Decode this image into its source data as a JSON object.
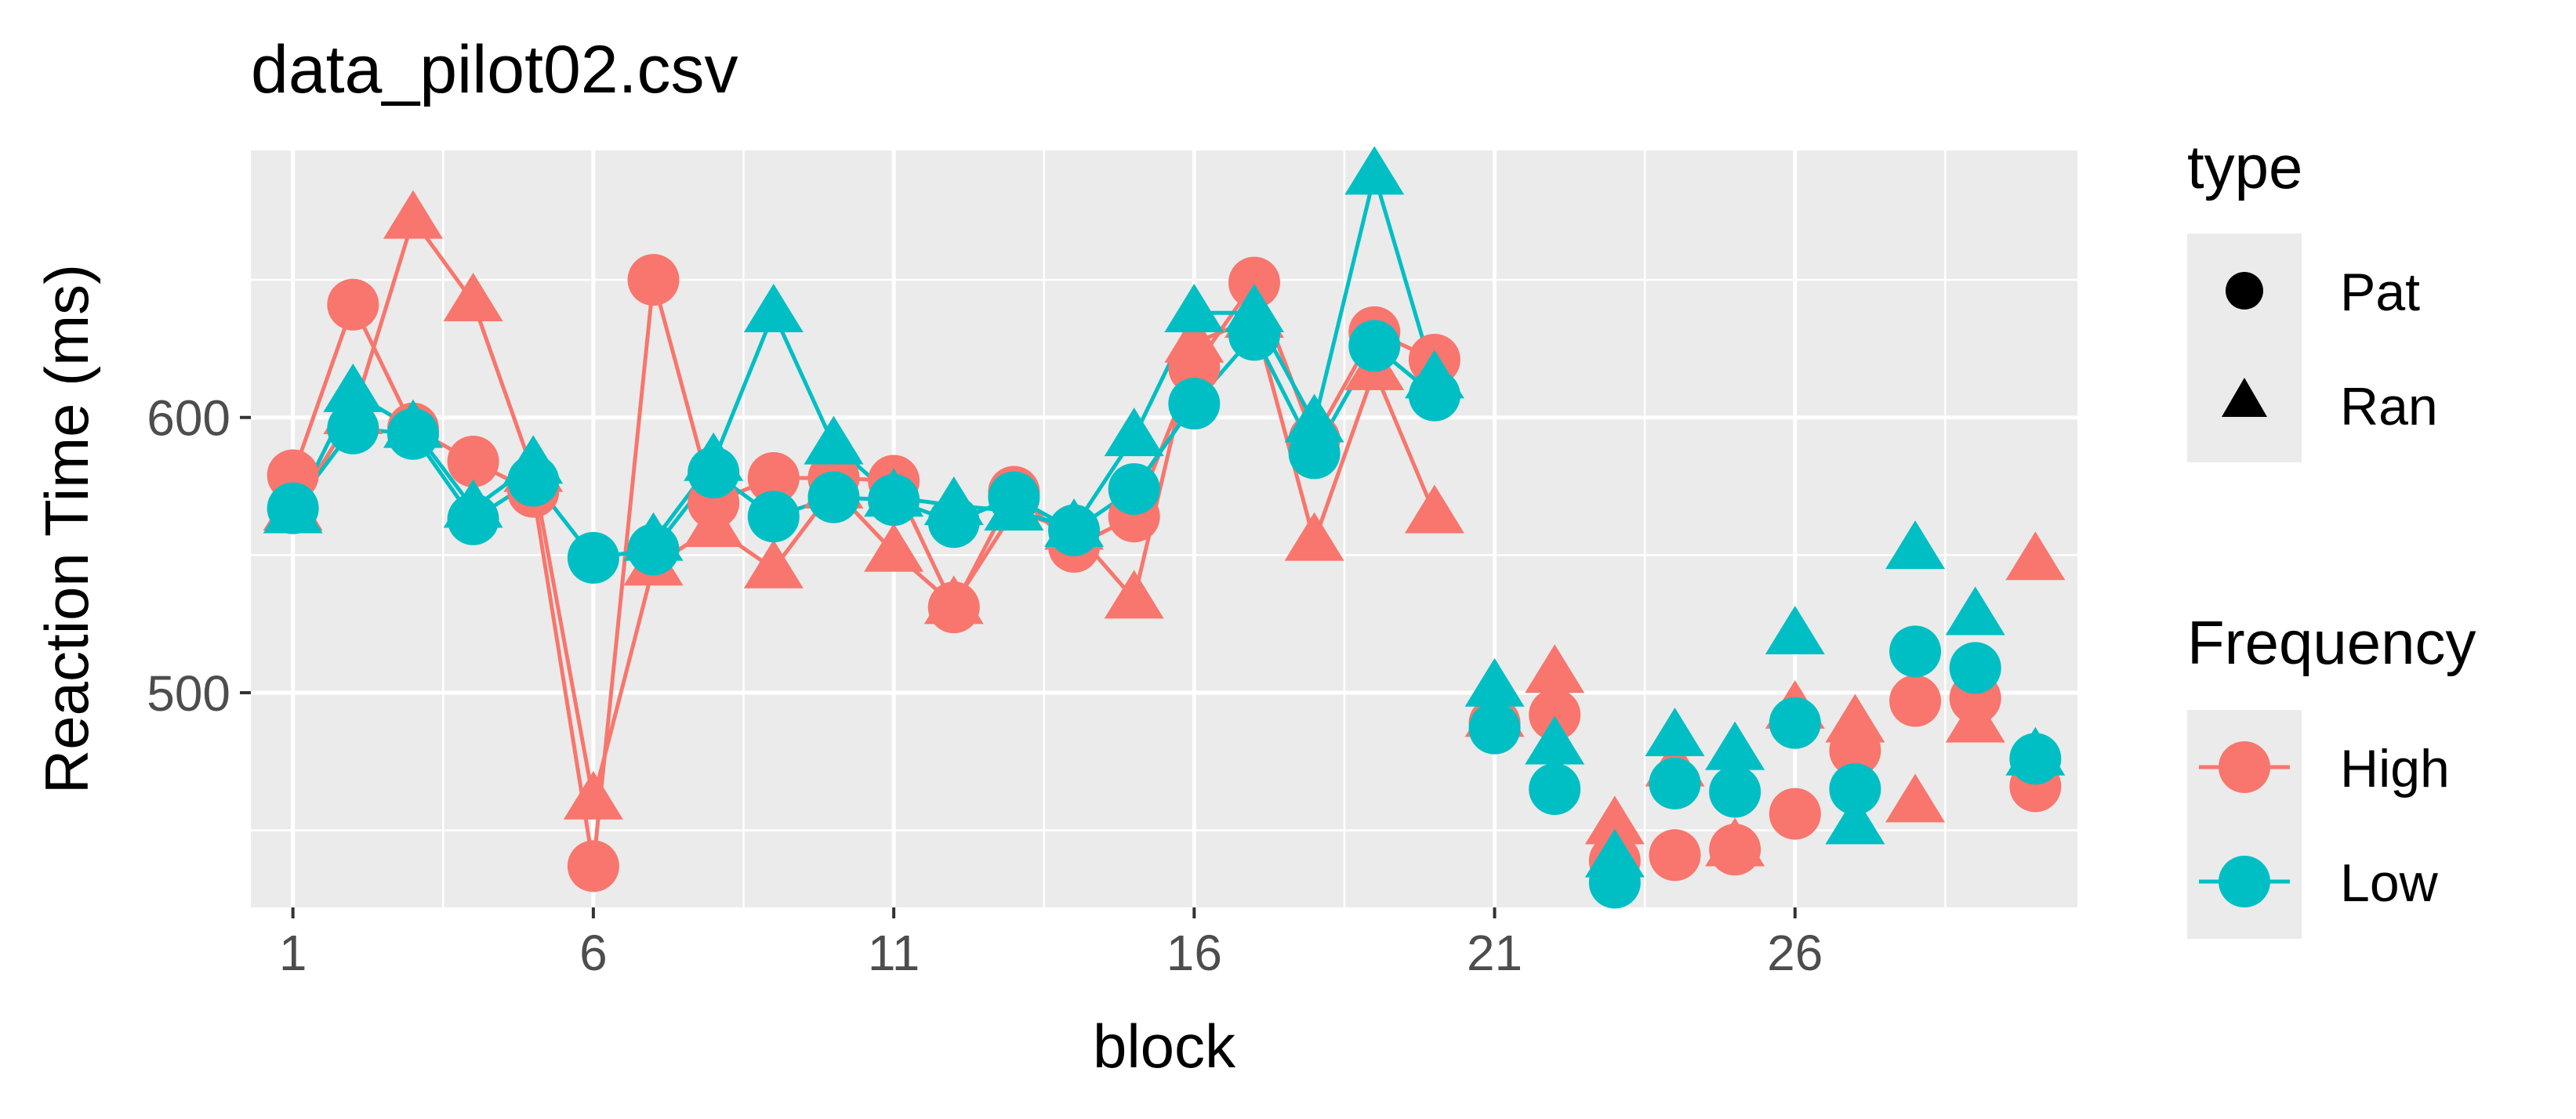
{
  "chart_data": {
    "type": "scatter",
    "title": "data_pilot02.csv",
    "xlabel": "block",
    "ylabel": "Reaction Time (ms)",
    "xlim": [
      0.3,
      30.7
    ],
    "ylim": [
      422,
      697
    ],
    "x_ticks": [
      1,
      6,
      11,
      16,
      21,
      26
    ],
    "y_ticks": [
      500,
      600
    ],
    "grid": true,
    "legend_position": "right",
    "legend": {
      "type": {
        "title": "type",
        "entries": [
          "Pat",
          "Ran"
        ]
      },
      "frequency": {
        "title": "Frequency",
        "entries": [
          "High",
          "Low"
        ]
      }
    },
    "colors": {
      "High": "#F8766D",
      "Low": "#00BFC4",
      "panel": "#EBEBEB",
      "grid": "#FFFFFF",
      "text": "#000000",
      "tick_text": "#4D4D4D",
      "legend_key": "#EBEBEB"
    },
    "connected_range": [
      1,
      20
    ],
    "series": [
      {
        "name": "Pat",
        "frequency": "High",
        "shape": "circle",
        "x": [
          1,
          2,
          3,
          4,
          5,
          6,
          7,
          8,
          9,
          10,
          11,
          12,
          13,
          14,
          15,
          16,
          17,
          18,
          19,
          20,
          21,
          22,
          23,
          24,
          25,
          26,
          27,
          28,
          29,
          30
        ],
        "y": [
          579,
          641,
          596,
          584,
          573,
          437,
          650,
          569,
          578,
          578,
          577,
          531,
          573,
          553,
          564,
          618,
          649,
          592,
          631,
          621,
          489,
          492,
          439,
          441,
          443,
          456,
          479,
          497,
          498,
          466
        ]
      },
      {
        "name": "Ran",
        "frequency": "High",
        "shape": "triangle",
        "x": [
          1,
          2,
          3,
          4,
          5,
          6,
          7,
          8,
          9,
          10,
          11,
          12,
          13,
          14,
          15,
          16,
          17,
          18,
          19,
          20,
          21,
          22,
          23,
          24,
          25,
          26,
          27,
          28,
          29,
          30
        ],
        "y": [
          566,
          601,
          672,
          642,
          580,
          461,
          546,
          560,
          545,
          574,
          551,
          532,
          566,
          559,
          534,
          627,
          636,
          555,
          617,
          565,
          491,
          507,
          452,
          473,
          444,
          494,
          489,
          460,
          489,
          548
        ]
      },
      {
        "name": "Pat",
        "frequency": "Low",
        "shape": "circle",
        "x": [
          1,
          2,
          3,
          4,
          5,
          6,
          7,
          8,
          9,
          10,
          11,
          12,
          13,
          14,
          15,
          16,
          17,
          18,
          19,
          20,
          21,
          22,
          23,
          24,
          25,
          26,
          27,
          28,
          29,
          30
        ],
        "y": [
          567,
          596,
          594,
          563,
          577,
          549,
          552,
          580,
          564,
          571,
          570,
          562,
          571,
          559,
          574,
          605,
          630,
          587,
          626,
          608,
          487,
          465,
          431,
          467,
          464,
          489,
          465,
          515,
          509,
          476
        ]
      },
      {
        "name": "Ran",
        "frequency": "Low",
        "shape": "triangle",
        "x": [
          1,
          2,
          3,
          4,
          5,
          6,
          7,
          8,
          9,
          10,
          11,
          12,
          13,
          14,
          15,
          16,
          17,
          18,
          19,
          20,
          21,
          22,
          23,
          24,
          25,
          26,
          27,
          28,
          29,
          30
        ],
        "y": [
          565,
          609,
          596,
          567,
          583,
          null,
          555,
          584,
          638,
          590,
          571,
          568,
          566,
          560,
          593,
          638,
          638,
          598,
          688,
          614,
          502,
          481,
          440,
          484,
          479,
          521,
          452,
          552,
          528,
          477
        ]
      }
    ]
  }
}
